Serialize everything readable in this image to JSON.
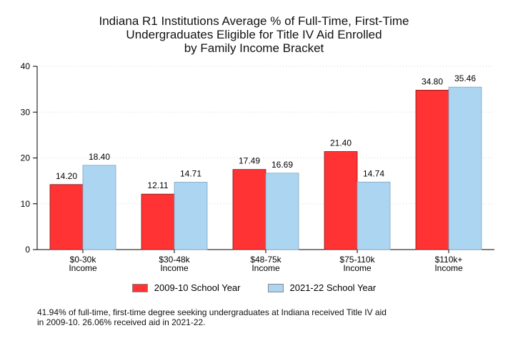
{
  "chart_data": {
    "type": "bar",
    "title_lines": [
      "Indiana R1 Institutions Average % of Full-Time, First-Time",
      "Undergraduates Eligible for Title IV Aid Enrolled",
      "by Family Income Bracket"
    ],
    "categories": [
      [
        "$0-30k",
        "Income"
      ],
      [
        "$30-48k",
        "Income"
      ],
      [
        "$48-75k",
        "Income"
      ],
      [
        "$75-110k",
        "Income"
      ],
      [
        "$110k+",
        "Income"
      ]
    ],
    "series": [
      {
        "name": "2009-10 School Year",
        "color": "#ff3333",
        "values": [
          14.2,
          12.11,
          17.49,
          21.4,
          34.8
        ],
        "labels": [
          "14.20",
          "12.11",
          "17.49",
          "21.40",
          "34.80"
        ]
      },
      {
        "name": "2021-22 School Year",
        "color": "#acd5f1",
        "values": [
          18.4,
          14.71,
          16.69,
          14.74,
          35.46
        ],
        "labels": [
          "18.40",
          "14.71",
          "16.69",
          "14.74",
          "35.46"
        ]
      }
    ],
    "ylim": [
      0,
      40
    ],
    "yticks": [
      "0",
      "10",
      "20",
      "30",
      "40"
    ],
    "xlabel": "",
    "ylabel": "",
    "grid": true,
    "legend_position": "bottom"
  },
  "footnote": {
    "line1": "41.94% of full-time, first-time degree seeking undergraduates at Indiana received Title IV aid",
    "line2": "in 2009-10. 26.06% received aid in 2021-22."
  }
}
